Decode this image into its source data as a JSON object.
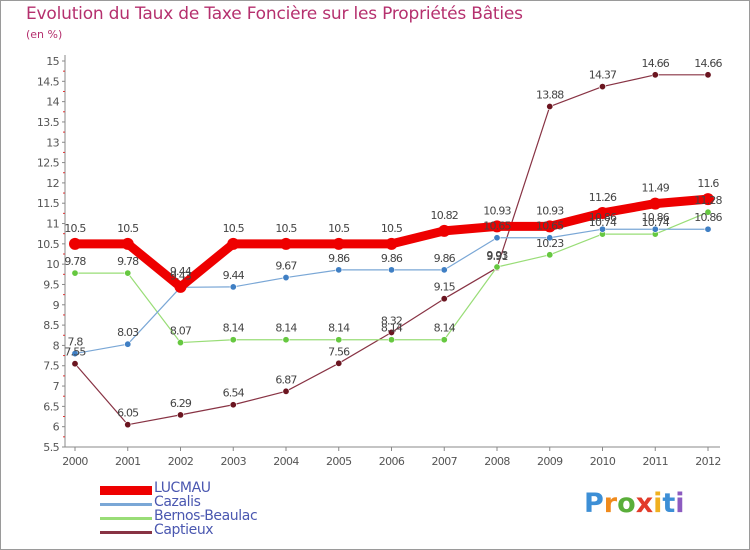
{
  "header": {
    "title": "Evolution du Taux de Taxe Foncière sur les Propriétés Bâties",
    "subtitle": "(en %)"
  },
  "logo": {
    "text": "Proxiti"
  },
  "chart_data": {
    "type": "line",
    "title": "Evolution du Taux de Taxe Foncière sur les Propriétés Bâties",
    "subtitle": "(en %)",
    "x": [
      "2000",
      "2001",
      "2002",
      "2003",
      "2004",
      "2005",
      "2006",
      "2007",
      "2008",
      "2009",
      "2010",
      "2011",
      "2012"
    ],
    "ylim": [
      5.5,
      15
    ],
    "yticks": [
      "5.5",
      "6",
      "6.5",
      "7",
      "7.5",
      "8",
      "8.5",
      "9",
      "9.5",
      "10",
      "10.5",
      "11",
      "11.5",
      "12",
      "12.5",
      "13",
      "13.5",
      "14",
      "14.5",
      "15"
    ],
    "grid": false,
    "legend_position": "bottom-left",
    "series": [
      {
        "name": "LUCMAU",
        "color": "#ee0000",
        "point_color": "#ee0000",
        "values": [
          10.5,
          10.5,
          9.44,
          10.5,
          10.5,
          10.5,
          10.5,
          10.82,
          10.93,
          10.93,
          11.26,
          11.49,
          11.6
        ],
        "labels": [
          "10.5",
          "10.5",
          "9.44",
          "10.5",
          "10.5",
          "10.5",
          "10.5",
          "10.82",
          "10.93",
          "10.93",
          "11.26",
          "11.49",
          "11.6"
        ]
      },
      {
        "name": "Cazalis",
        "color": "#7aa7d6",
        "point_color": "#3f7fc4",
        "values": [
          7.8,
          8.03,
          9.43,
          9.44,
          9.67,
          9.86,
          9.86,
          9.86,
          10.65,
          10.65,
          10.86,
          10.86,
          10.86
        ],
        "labels": [
          "7.8",
          "8.03",
          "9.43",
          "9.44",
          "9.67",
          "9.86",
          "9.86",
          "9.86",
          "10.65",
          "10.65",
          "10.86",
          "10.86",
          "10.86"
        ]
      },
      {
        "name": "Bernos-Beaulac",
        "color": "#99dd77",
        "point_color": "#66c840",
        "values": [
          9.78,
          9.78,
          8.07,
          8.14,
          8.14,
          8.14,
          8.14,
          8.14,
          9.93,
          10.23,
          10.74,
          10.74,
          11.28
        ],
        "labels": [
          "9.78",
          "9.78",
          "8.07",
          "8.14",
          "8.14",
          "8.14",
          "8.14",
          "8.14",
          "9.93",
          "10.23",
          "10.74",
          "10.74",
          "11.28"
        ]
      },
      {
        "name": "Captieux",
        "color": "#883344",
        "point_color": "#6b1520",
        "values": [
          7.55,
          6.05,
          6.29,
          6.54,
          6.87,
          7.56,
          8.32,
          9.15,
          9.91,
          13.88,
          14.37,
          14.66,
          14.66
        ],
        "labels": [
          "7.55",
          "6.05",
          "6.29",
          "6.54",
          "6.87",
          "7.56",
          "8.32",
          "9.15",
          "9.91",
          "13.88",
          "14.37",
          "14.66",
          "14.66"
        ]
      }
    ]
  }
}
